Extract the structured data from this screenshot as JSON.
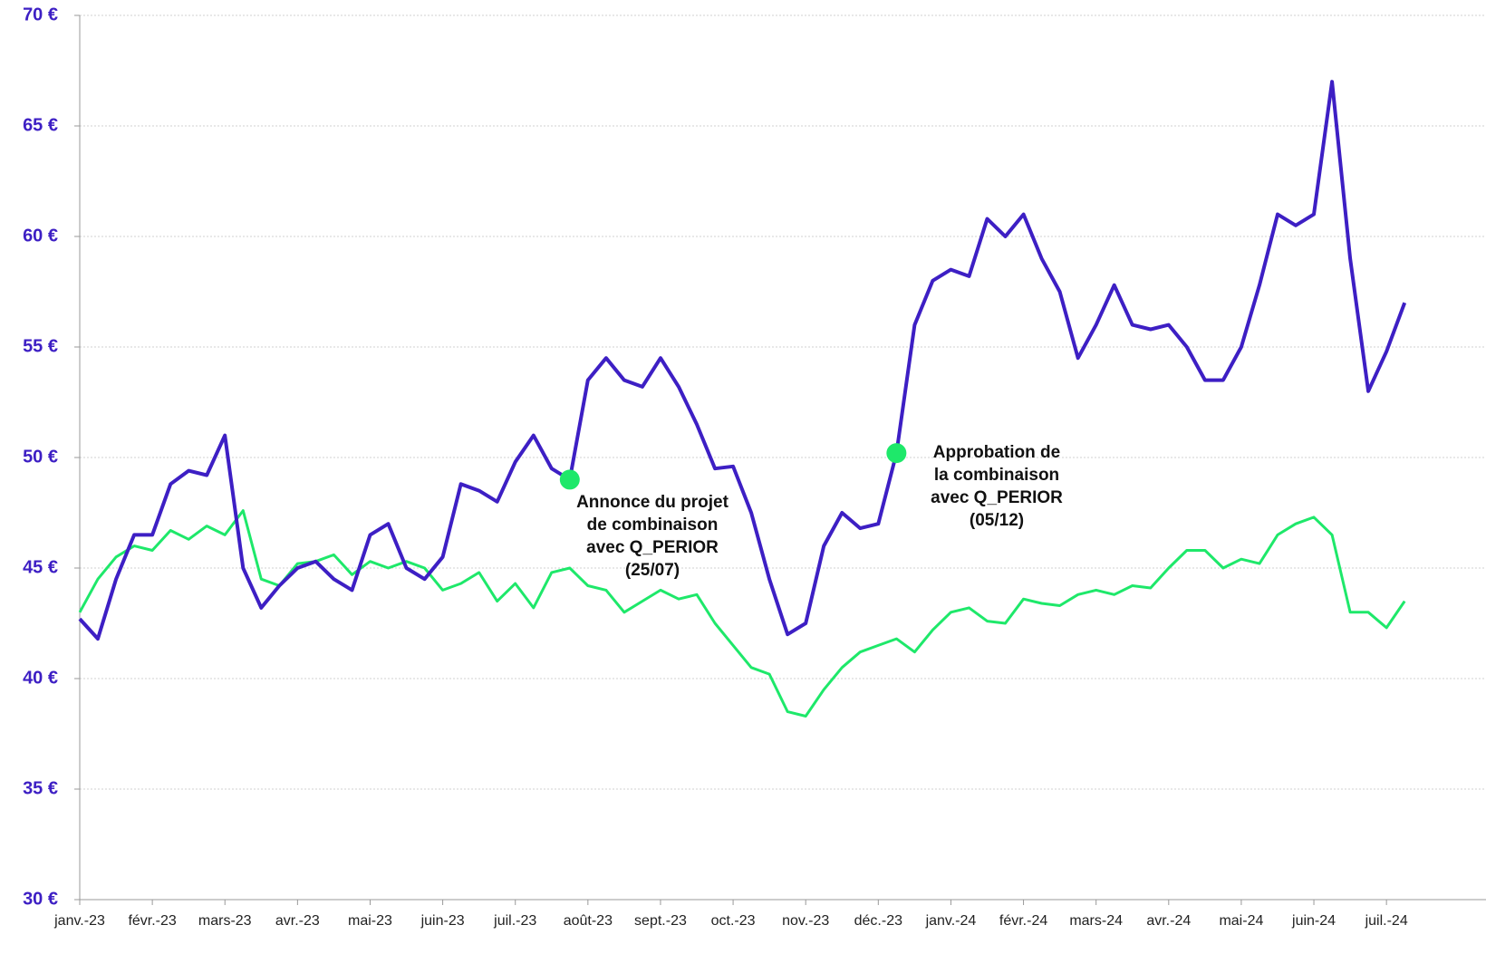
{
  "chart_data": {
    "type": "line",
    "categories": [
      "janv.-23",
      null,
      null,
      null,
      "févr.-23",
      null,
      null,
      null,
      "mars-23",
      null,
      null,
      null,
      "avr.-23",
      null,
      null,
      null,
      "mai-23",
      null,
      null,
      null,
      "juin-23",
      null,
      null,
      null,
      "juil.-23",
      null,
      null,
      null,
      "août-23",
      null,
      null,
      null,
      "sept.-23",
      null,
      null,
      null,
      "oct.-23",
      null,
      null,
      null,
      "nov.-23",
      null,
      null,
      null,
      "déc.-23",
      null,
      null,
      null,
      "janv.-24",
      null,
      null,
      null,
      "févr.-24",
      null,
      null,
      null,
      "mars-24",
      null,
      null,
      null,
      "avr.-24",
      null,
      null,
      null,
      "mai-24",
      null,
      null,
      null,
      "juin-24",
      null,
      null,
      null,
      "juil.-24",
      null
    ],
    "series": [
      {
        "color": "#3d1fc4",
        "values": [
          42.7,
          41.8,
          44.5,
          46.5,
          46.5,
          48.8,
          49.4,
          49.2,
          51.0,
          45.0,
          43.2,
          44.2,
          45.0,
          45.3,
          44.5,
          44.0,
          46.5,
          47.0,
          45.0,
          44.5,
          45.5,
          48.8,
          48.5,
          48.0,
          49.8,
          51.0,
          49.5,
          49.0,
          53.5,
          54.5,
          53.5,
          53.2,
          54.5,
          53.2,
          51.5,
          49.5,
          49.6,
          47.5,
          44.5,
          42.0,
          42.5,
          46.0,
          47.5,
          46.8,
          47.0,
          50.2,
          56.0,
          58.0,
          58.5,
          58.2,
          60.8,
          60.0,
          61.0,
          59.0,
          57.5,
          54.5,
          56.0,
          57.8,
          56.0,
          55.8,
          56.0,
          55.0,
          53.5,
          53.5,
          55.0,
          57.8,
          61.0,
          60.5,
          61.0,
          67.0,
          59.0,
          53.0,
          54.8,
          57.0
        ]
      },
      {
        "color": "#1ee86a",
        "values": [
          43.0,
          44.5,
          45.5,
          46.0,
          45.8,
          46.7,
          46.3,
          46.9,
          46.5,
          47.6,
          44.5,
          44.2,
          45.2,
          45.3,
          45.6,
          44.7,
          45.3,
          45.0,
          45.3,
          45.0,
          44.0,
          44.3,
          44.8,
          43.5,
          44.3,
          43.2,
          44.8,
          45.0,
          44.2,
          44.0,
          43.0,
          43.5,
          44.0,
          43.6,
          43.8,
          42.5,
          41.5,
          40.5,
          40.2,
          38.5,
          38.3,
          39.5,
          40.5,
          41.2,
          41.5,
          41.8,
          41.2,
          42.2,
          43.0,
          43.2,
          42.6,
          42.5,
          43.6,
          43.4,
          43.3,
          43.8,
          44.0,
          43.8,
          44.2,
          44.1,
          45.0,
          45.8,
          45.8,
          45.0,
          45.4,
          45.2,
          46.5,
          47.0,
          47.3,
          46.5,
          43.0,
          43.0,
          42.3,
          43.5
        ]
      }
    ],
    "ylim": [
      30,
      70
    ],
    "yticks": [
      {
        "value": 30,
        "label": "30 €"
      },
      {
        "value": 35,
        "label": "35 €"
      },
      {
        "value": 40,
        "label": "40 €"
      },
      {
        "value": 45,
        "label": "45 €"
      },
      {
        "value": 50,
        "label": "50 €"
      },
      {
        "value": 55,
        "label": "55 €"
      },
      {
        "value": 60,
        "label": "60 €"
      },
      {
        "value": 65,
        "label": "65 €"
      },
      {
        "value": 70,
        "label": "70 €"
      }
    ],
    "grid": true,
    "annotations": [
      {
        "lines": [
          "Annonce du projet",
          "de combinaison",
          "avec Q_PERIOR",
          "(25/07)"
        ]
      },
      {
        "lines": [
          "Approbation de",
          "la combinaison",
          "avec Q_PERIOR",
          "(05/12)"
        ]
      }
    ]
  }
}
